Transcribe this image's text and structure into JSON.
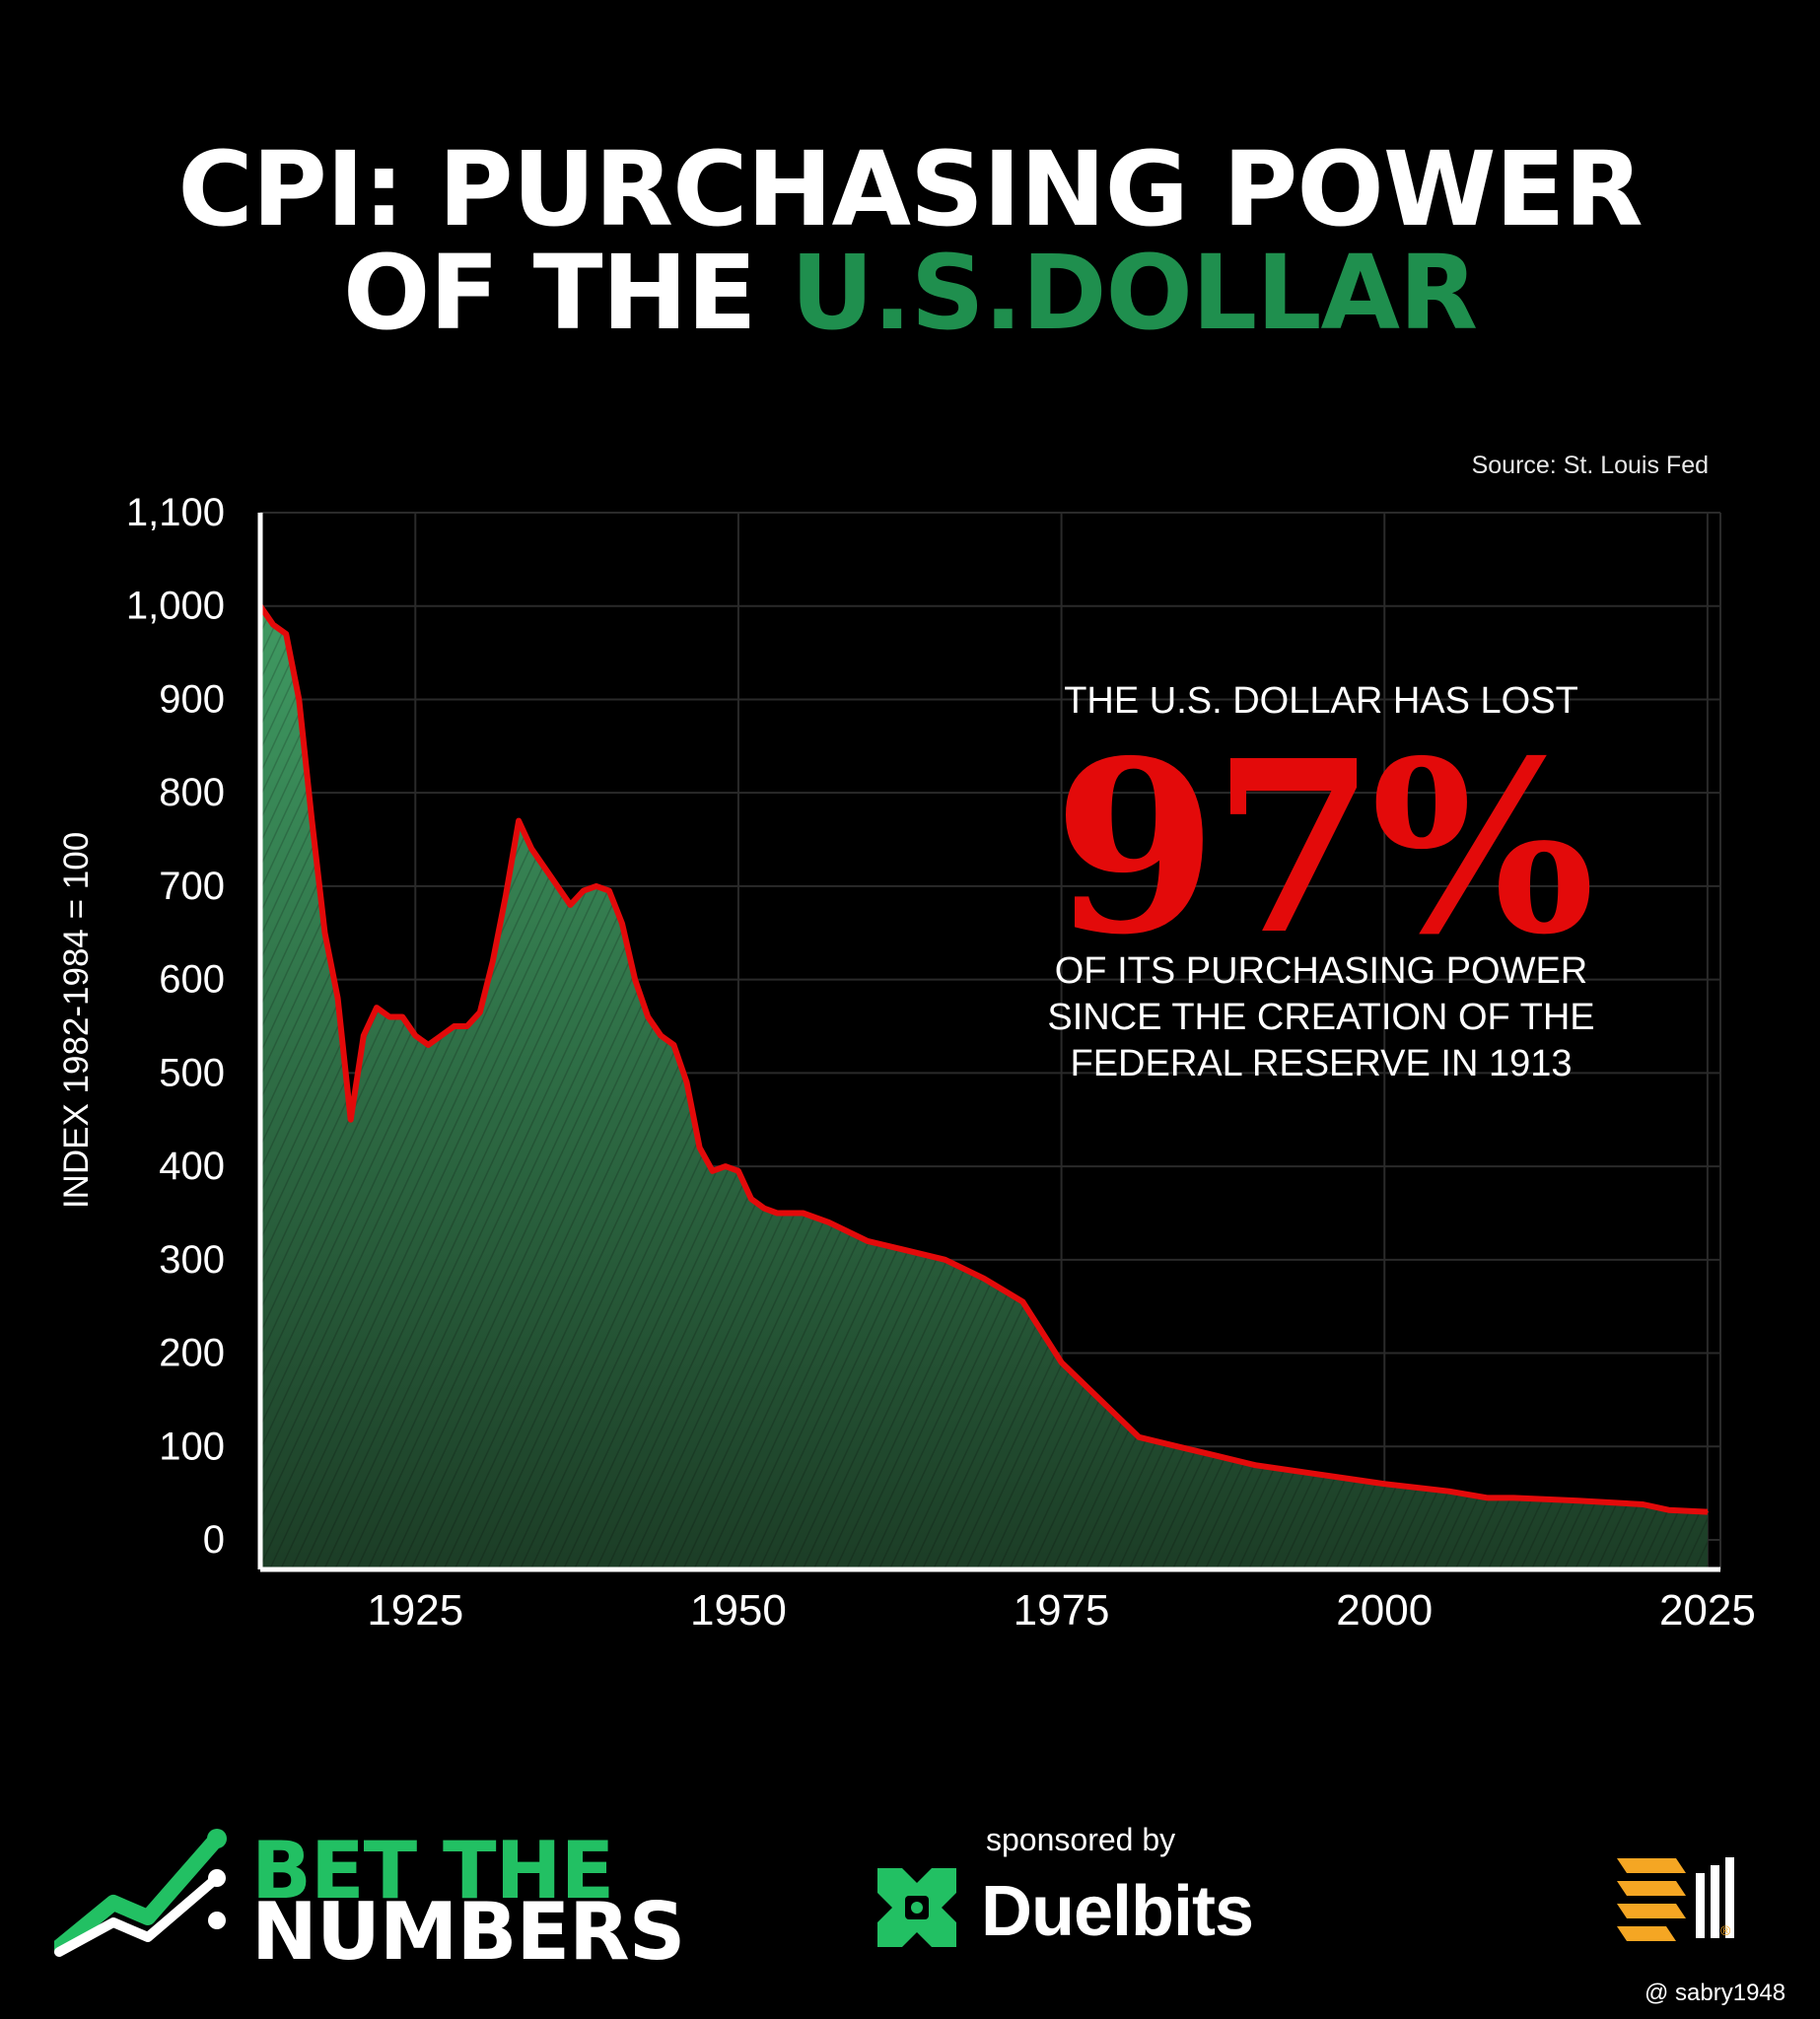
{
  "header": {
    "title_line1": "CPI: PURCHASING POWER",
    "title_line2_white": "OF THE ",
    "title_line2_green": "U.S.DOLLAR"
  },
  "source": "Source: St. Louis Fed",
  "callout": {
    "top": "THE U.S. DOLLAR HAS LOST",
    "big": "97%",
    "bottom_lines": [
      "OF ITS PURCHASING POWER",
      "SINCE THE CREATION OF THE",
      "FEDERAL RESERVE IN 1913"
    ]
  },
  "footer": {
    "brand_line1": "BET THE",
    "brand_line2": "NUMBERS",
    "sponsored": "sponsored by",
    "sponsor": "Duelbits",
    "watermark": "@ sabry1948"
  },
  "colors": {
    "line": "#e30a0a",
    "fill_top": "#3f9a62",
    "fill_bottom": "#1c3d26",
    "accent_green": "#1f8f4e",
    "grid": "#2a2a2a"
  },
  "chart_data": {
    "type": "area",
    "title": "CPI: PURCHASING POWER OF THE U.S.DOLLAR",
    "xlabel": "",
    "ylabel": "INDEX 1982-1984 = 100",
    "xlim": [
      1913,
      2026
    ],
    "ylim": [
      0,
      1100
    ],
    "x_ticks": [
      1925,
      1950,
      1975,
      2000,
      2025
    ],
    "y_ticks": [
      0,
      100,
      200,
      300,
      400,
      500,
      600,
      700,
      800,
      900,
      1000,
      1100
    ],
    "y_tick_labels": [
      "0",
      "100",
      "200",
      "300",
      "400",
      "500",
      "600",
      "700",
      "800",
      "900",
      "1,000",
      "1,100"
    ],
    "grid": true,
    "series": [
      {
        "x": [
          1913,
          1914,
          1915,
          1916,
          1917,
          1918,
          1919,
          1920,
          1921,
          1922,
          1923,
          1924,
          1925,
          1926,
          1927,
          1928,
          1929,
          1930,
          1931,
          1932,
          1933,
          1934,
          1935,
          1936,
          1937,
          1938,
          1939,
          1940,
          1941,
          1942,
          1943,
          1944,
          1945,
          1946,
          1947,
          1948,
          1949,
          1950,
          1951,
          1952,
          1953,
          1955,
          1957,
          1960,
          1963,
          1966,
          1969,
          1972,
          1975,
          1978,
          1981,
          1984,
          1987,
          1990,
          1995,
          2000,
          2005,
          2008,
          2010,
          2015,
          2020,
          2022,
          2025
        ],
        "y": [
          1000,
          980,
          970,
          900,
          770,
          650,
          580,
          450,
          540,
          570,
          560,
          560,
          540,
          530,
          540,
          550,
          550,
          565,
          620,
          690,
          770,
          740,
          720,
          700,
          680,
          695,
          700,
          695,
          660,
          600,
          560,
          540,
          530,
          490,
          420,
          395,
          400,
          395,
          365,
          355,
          350,
          350,
          340,
          320,
          310,
          300,
          280,
          255,
          190,
          150,
          110,
          100,
          90,
          80,
          70,
          60,
          52,
          45,
          45,
          42,
          38,
          32,
          30
        ]
      }
    ]
  }
}
